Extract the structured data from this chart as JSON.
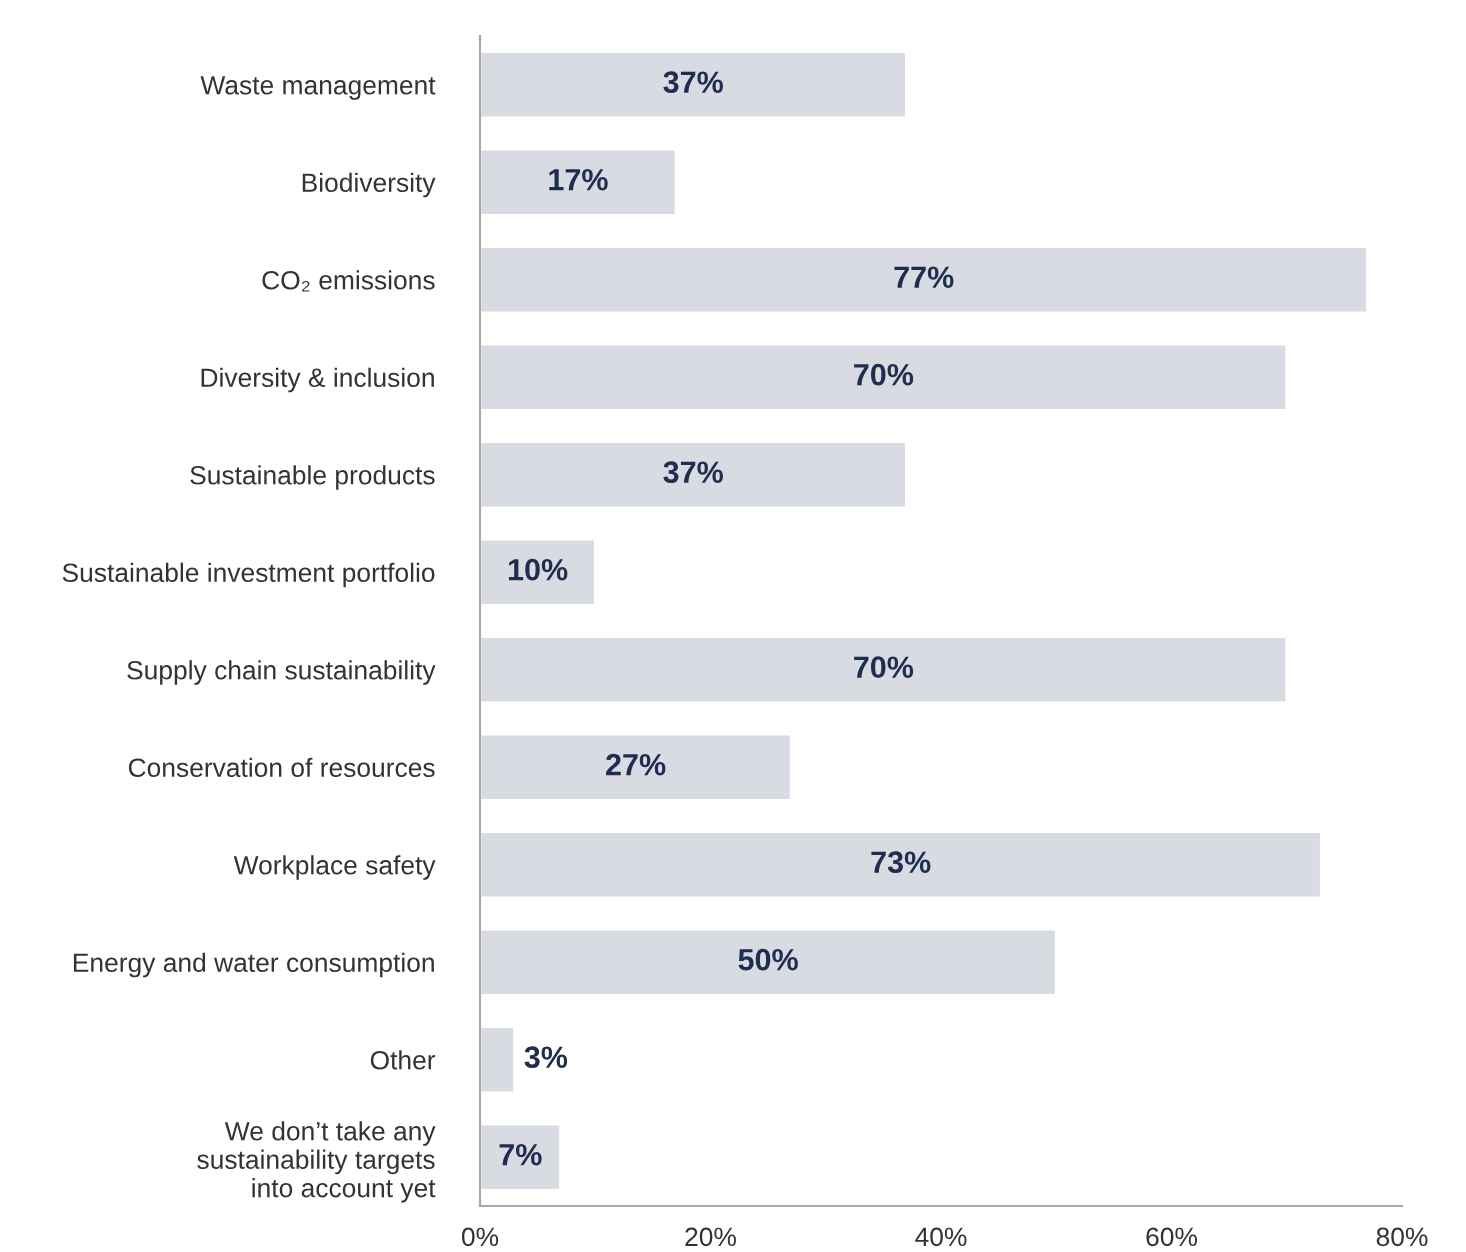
{
  "chart_data": {
    "type": "bar",
    "orientation": "horizontal",
    "categories": [
      "Waste management",
      "Biodiversity",
      "CO₂ emissions",
      "Diversity & inclusion",
      "Sustainable products",
      "Sustainable investment portfolio",
      "Supply chain sustainability",
      "Conservation of resources",
      "Workplace safety",
      "Energy and water consumption",
      "Other",
      "We don’t take any\nsustainability targets\ninto account yet"
    ],
    "values": [
      37,
      17,
      77,
      70,
      37,
      10,
      70,
      27,
      73,
      50,
      3,
      7
    ],
    "value_labels": [
      "37%",
      "17%",
      "77%",
      "70%",
      "37%",
      "10%",
      "70%",
      "27%",
      "73%",
      "50%",
      "3%",
      "7%"
    ],
    "color": "#d9dbe3",
    "xlim": [
      0,
      80
    ],
    "xticks": [
      {
        "value": 0,
        "label": "0%"
      },
      {
        "value": 20,
        "label": "20%"
      },
      {
        "value": 40,
        "label": "40%"
      },
      {
        "value": 60,
        "label": "60%"
      },
      {
        "value": 80,
        "label": "80%"
      }
    ],
    "grid": false,
    "legend": false
  }
}
